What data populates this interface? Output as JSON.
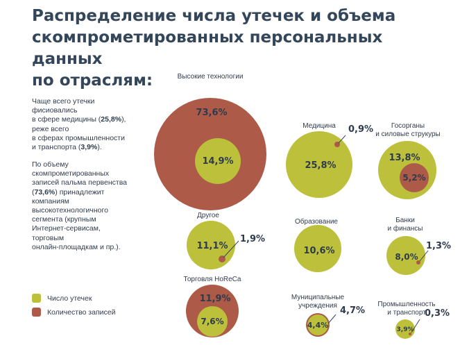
{
  "title_lines": [
    "Распределение числа утечек и объема",
    "скомпрометированных персональных данных",
    "по отраслям:"
  ],
  "text1": {
    "p1": "Чаще всего утечки\nфисиовались\nв сфере медицины (",
    "v1": "25,8%",
    "p2": "), реже всего\nв сферах промышленности\nи транспорта (",
    "v2": "3,9%",
    "p3": ")."
  },
  "text2": {
    "p1": "По объему\nскомпрометированных\nзаписей пальма первенства\n(",
    "v1": "73,6%",
    "p2": ") принадлежит\nкомпаниям\nвысокотехнологичного\nсегмента (крупным\nИнтернет-сервисам,\nторговым\nонлайн-площадкам и пр.)."
  },
  "legend": [
    {
      "label": "Число утечек",
      "color": "#bcc03a"
    },
    {
      "label": "Количество записей",
      "color": "#ad5a49"
    }
  ],
  "colors": {
    "leaks": "#bcc03a",
    "records": "#ad5a49",
    "leaks_dark": "#a9ad2c"
  },
  "chart_data": {
    "type": "nested-bubble",
    "title": "Распределение числа утечек и объема скомпрометированных персональных данных по отраслям",
    "series": [
      {
        "name": "Число утечек",
        "unit": "%"
      },
      {
        "name": "Количество записей",
        "unit": "%"
      }
    ],
    "categories": [
      {
        "name": "Высокие технологии",
        "leaks": 14.9,
        "records": 73.6,
        "leaks_label": "14,9%",
        "records_label": "73,6%"
      },
      {
        "name": "Медицина",
        "leaks": 25.8,
        "records": 0.9,
        "leaks_label": "25,8%",
        "records_label": "0,9%"
      },
      {
        "name": "Госорганы\nи силовые струкуры",
        "leaks": 13.8,
        "records": 5.2,
        "leaks_label": "13,8%",
        "records_label": "5,2%"
      },
      {
        "name": "Другое",
        "leaks": 11.1,
        "records": 1.9,
        "leaks_label": "11,1%",
        "records_label": "1,9%"
      },
      {
        "name": "Образование",
        "leaks": 10.6,
        "records": null,
        "leaks_label": "10,6%",
        "records_label": null
      },
      {
        "name": "Банки\nи финансы",
        "leaks": 8.0,
        "records": 1.3,
        "leaks_label": "8,0%",
        "records_label": "1,3%"
      },
      {
        "name": "Торговля HoReCa",
        "leaks": 7.6,
        "records": 11.9,
        "leaks_label": "7,6%",
        "records_label": "11,9%"
      },
      {
        "name": "Муниципальные\nучреждения",
        "leaks": 4.4,
        "records": 4.7,
        "leaks_label": "4,4%",
        "records_label": "4,7%"
      },
      {
        "name": "Промышленность\nи транспорт",
        "leaks": 3.9,
        "records": 0.3,
        "leaks_label": "3,9%",
        "records_label": "0,3%"
      }
    ]
  }
}
